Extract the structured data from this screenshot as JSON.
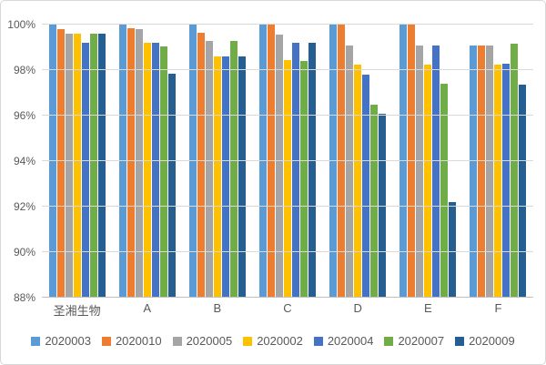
{
  "chart_data": {
    "type": "bar",
    "title": "",
    "categories": [
      "圣湘生物",
      "A",
      "B",
      "C",
      "D",
      "E",
      "F"
    ],
    "series": [
      {
        "name": "2020003",
        "color": "#5B9BD5",
        "values": [
          100,
          100,
          100,
          100,
          100,
          100,
          99.1
        ]
      },
      {
        "name": "2020010",
        "color": "#ED7D31",
        "values": [
          99.8,
          99.85,
          99.65,
          100,
          100,
          100,
          99.1
        ]
      },
      {
        "name": "2020005",
        "color": "#A5A5A5",
        "values": [
          99.6,
          99.8,
          99.3,
          99.55,
          99.1,
          99.1,
          99.1
        ]
      },
      {
        "name": "2020002",
        "color": "#FFC000",
        "values": [
          99.6,
          99.2,
          98.6,
          98.45,
          98.25,
          98.25,
          98.25
        ]
      },
      {
        "name": "2020004",
        "color": "#4472C4",
        "values": [
          99.2,
          99.2,
          98.6,
          99.2,
          97.8,
          99.1,
          98.3
        ]
      },
      {
        "name": "2020007",
        "color": "#70AD47",
        "values": [
          99.6,
          99.05,
          99.3,
          98.4,
          96.5,
          97.4,
          99.15
        ]
      },
      {
        "name": "2020009",
        "color": "#255E91",
        "values": [
          99.6,
          97.85,
          98.6,
          99.2,
          96.1,
          92.2,
          97.35
        ]
      }
    ],
    "ylim": [
      88,
      100
    ],
    "yticks": [
      {
        "value": 100,
        "label": "100%"
      },
      {
        "value": 98,
        "label": "98%"
      },
      {
        "value": 96,
        "label": "96%"
      },
      {
        "value": 94,
        "label": "94%"
      },
      {
        "value": 92,
        "label": "92%"
      },
      {
        "value": 90,
        "label": "90%"
      },
      {
        "value": 88,
        "label": "88%"
      }
    ],
    "xlabel": "",
    "ylabel": "",
    "grid": true,
    "legend_position": "bottom"
  },
  "colors": {
    "background": "#ffffff",
    "border": "#d7d7d7",
    "gridline": "#d9d9d9",
    "axis_line": "#bfbfbf",
    "tick_text": "#595959"
  }
}
